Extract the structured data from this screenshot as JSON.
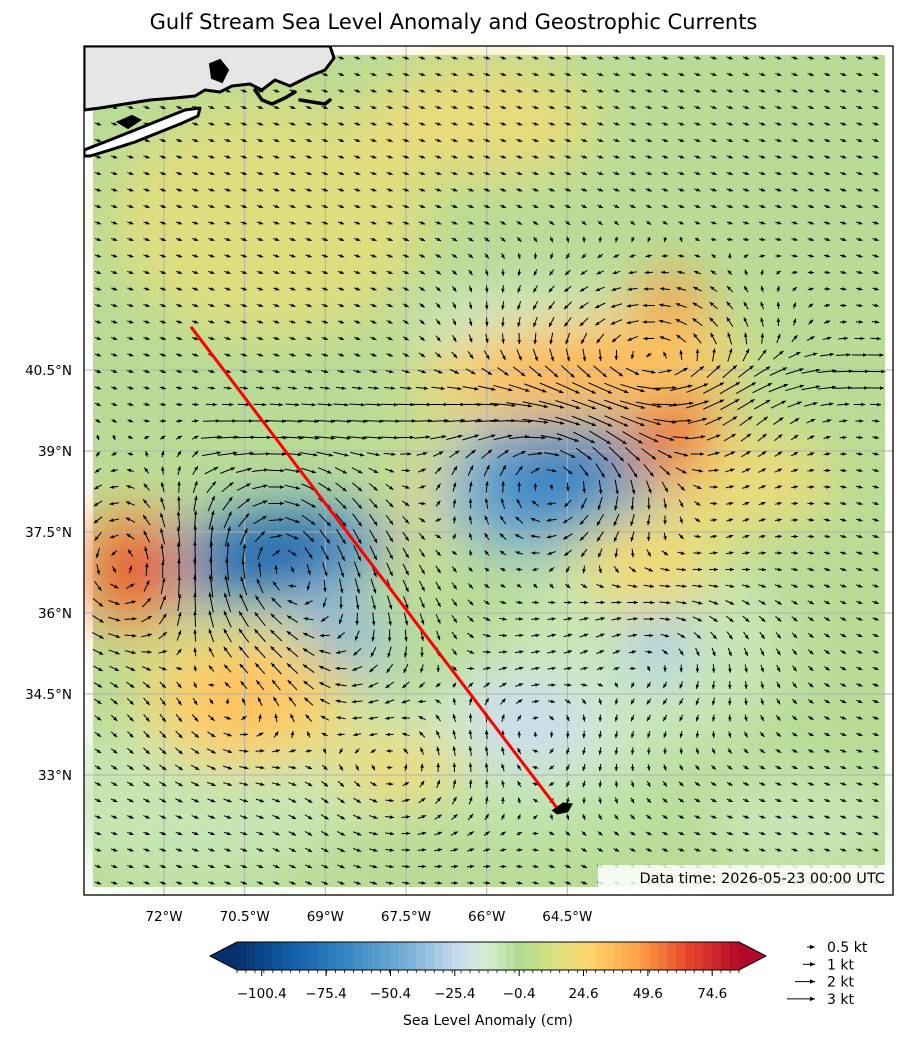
{
  "title": "Gulf Stream Sea Level Anomaly and Geostrophic Currents",
  "data_time": "Data time: 2026-05-23 00:00 UTC",
  "map": {
    "lon_range": [
      -73.2,
      -62.5
    ],
    "lat_range": [
      31.8,
      41.5
    ],
    "lat_ticks": [
      {
        "value": 40.5,
        "label": "40.5°N"
      },
      {
        "value": 39.0,
        "label": "39°N"
      },
      {
        "value": 37.5,
        "label": "37.5°N"
      },
      {
        "value": 36.0,
        "label": "36°N"
      },
      {
        "value": 34.5,
        "label": "34.5°N"
      },
      {
        "value": 33.0,
        "label": "33°N"
      }
    ],
    "lon_ticks": [
      {
        "value": -72.0,
        "label": "72°W"
      },
      {
        "value": -70.5,
        "label": "70.5°W"
      },
      {
        "value": -69.0,
        "label": "69°W"
      },
      {
        "value": -67.5,
        "label": "67.5°W"
      },
      {
        "value": -66.0,
        "label": "66°W"
      },
      {
        "value": -64.5,
        "label": "64.5°W"
      }
    ],
    "gridlines": true,
    "track_line": {
      "color": "#ff0000",
      "start": [
        -71.5,
        41.3
      ],
      "end": [
        -64.7,
        32.4
      ]
    },
    "track_end_marker": [
      -64.5,
      32.4
    ]
  },
  "colorbar": {
    "label": "Sea Level Anomaly (cm)",
    "ticks": [
      "−100.4",
      "−75.4",
      "−50.4",
      "−25.4",
      "−0.4",
      "24.6",
      "49.6",
      "74.6"
    ],
    "tick_values": [
      -100.4,
      -75.4,
      -50.4,
      -25.4,
      -0.4,
      24.6,
      49.6,
      74.6
    ],
    "range": [
      -110,
      85
    ],
    "extend": "both",
    "colormap": "RdYlBu_r"
  },
  "vector_legend": [
    {
      "label": "0.5 kt",
      "speed": 0.5
    },
    {
      "label": "1 kt",
      "speed": 1
    },
    {
      "label": "2 kt",
      "speed": 2
    },
    {
      "label": "3 kt",
      "speed": 3
    }
  ],
  "chart_data": {
    "type": "heatmap",
    "title": "Gulf Stream Sea Level Anomaly and Geostrophic Currents",
    "variable": "Sea Level Anomaly (cm)",
    "features": [
      {
        "kind": "low",
        "lon": -70.0,
        "lat": 37.1,
        "value": -90
      },
      {
        "kind": "low",
        "lon": -64.6,
        "lat": 38.6,
        "value": -70
      },
      {
        "kind": "low",
        "lon": -68.8,
        "lat": 35.5,
        "value": -50
      },
      {
        "kind": "low",
        "lon": -62.8,
        "lat": 35.6,
        "value": -35
      },
      {
        "kind": "low",
        "lon": -65.2,
        "lat": 34.0,
        "value": -25
      },
      {
        "kind": "high",
        "lon": -62.6,
        "lat": 40.3,
        "value": 75
      },
      {
        "kind": "high",
        "lon": -72.6,
        "lat": 36.8,
        "value": 70
      },
      {
        "kind": "high",
        "lon": -64.3,
        "lat": 40.5,
        "value": 40
      },
      {
        "kind": "high",
        "lon": -70.5,
        "lat": 34.4,
        "value": 35
      },
      {
        "kind": "high",
        "lon": -67.7,
        "lat": 33.1,
        "value": 25
      },
      {
        "kind": "high",
        "lon": -63.0,
        "lat": 36.9,
        "value": 25
      }
    ]
  }
}
